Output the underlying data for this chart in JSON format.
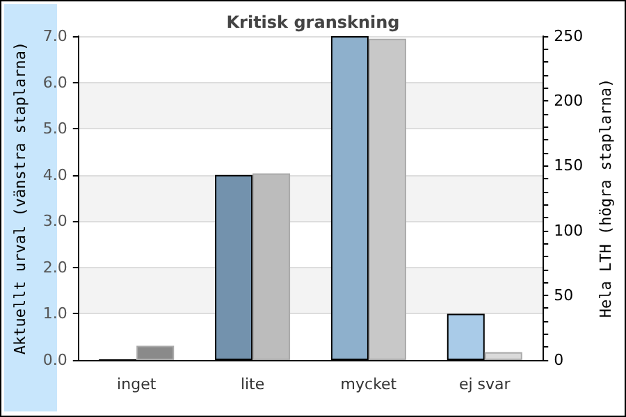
{
  "chart_data": {
    "type": "bar",
    "title": "Kritisk granskning",
    "ylabel": "Aktuellt urval (vänstra staplarna)",
    "y2label": "Hela LTH (högra staplarna)",
    "categories": [
      "inget",
      "lite",
      "mycket",
      "ej svar"
    ],
    "series": [
      {
        "colors": [
          "#7392ad",
          "#7392ad",
          "#8eb0cc",
          "#a9cbe8"
        ],
        "values": [
          0,
          4,
          7,
          1
        ]
      },
      {
        "axis": "y2",
        "colors": [
          "#8a8a8a",
          "#bcbcbc",
          "#c8c8c8",
          "#dadada"
        ],
        "values": [
          11,
          144,
          248,
          6
        ]
      }
    ],
    "ylim": [
      0,
      7
    ],
    "yticks": [
      {
        "value": 0,
        "label": "0.0"
      },
      {
        "value": 1,
        "label": "1.0"
      },
      {
        "value": 2,
        "label": "2.0"
      },
      {
        "value": 3,
        "label": "3.0"
      },
      {
        "value": 4,
        "label": "4.0"
      },
      {
        "value": 5,
        "label": "5.0"
      },
      {
        "value": 6,
        "label": "6.0"
      },
      {
        "value": 7,
        "label": "7.0"
      }
    ],
    "y2lim": [
      0,
      250
    ],
    "y2ticks": [
      0,
      {
        "value": 10,
        "label": null
      },
      {
        "value": 20,
        "label": null
      },
      {
        "value": 30,
        "label": null
      },
      {
        "value": 40,
        "label": null
      },
      50,
      {
        "value": 60,
        "label": null
      },
      {
        "value": 70,
        "label": null
      },
      {
        "value": 80,
        "label": null
      },
      {
        "value": 90,
        "label": null
      },
      100,
      {
        "value": 110,
        "label": null
      },
      {
        "value": 120,
        "label": null
      },
      {
        "value": 130,
        "label": null
      },
      {
        "value": 140,
        "label": null
      },
      150,
      {
        "value": 160,
        "label": null
      },
      {
        "value": 170,
        "label": null
      },
      {
        "value": 180,
        "label": null
      },
      {
        "value": 190,
        "label": null
      },
      200,
      {
        "value": 210,
        "label": null
      },
      {
        "value": 220,
        "label": null
      },
      {
        "value": 230,
        "label": null
      },
      {
        "value": 240,
        "label": null
      },
      250
    ],
    "grid": "y"
  }
}
